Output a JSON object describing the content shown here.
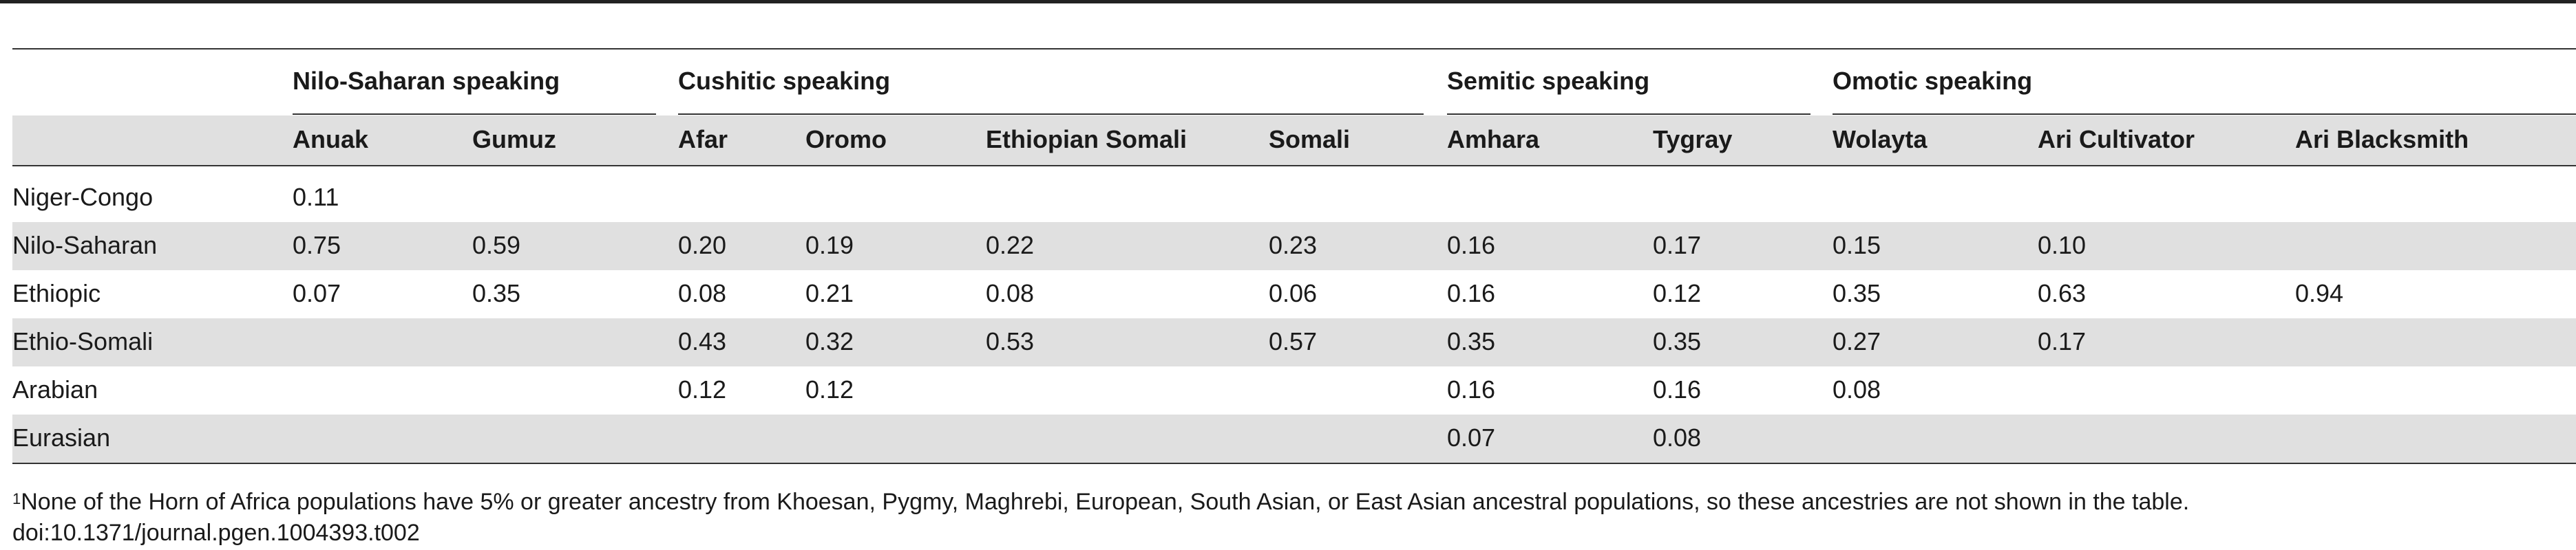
{
  "group_headers": [
    "Nilo-Saharan speaking",
    "Cushitic speaking",
    "Semitic speaking",
    "Omotic speaking"
  ],
  "column_headers": [
    "Anuak",
    "Gumuz",
    "Afar",
    "Oromo",
    "Ethiopian Somali",
    "Somali",
    "Amhara",
    "Tygray",
    "Wolayta",
    "Ari Cultivator",
    "Ari Blacksmith"
  ],
  "rows": [
    {
      "label": "Niger-Congo",
      "cells": [
        "0.11",
        "",
        "",
        "",
        "",
        "",
        "",
        "",
        "",
        "",
        ""
      ]
    },
    {
      "label": "Nilo-Saharan",
      "cells": [
        "0.75",
        "0.59",
        "0.20",
        "0.19",
        "0.22",
        "0.23",
        "0.16",
        "0.17",
        "0.15",
        "0.10",
        ""
      ]
    },
    {
      "label": "Ethiopic",
      "cells": [
        "0.07",
        "0.35",
        "0.08",
        "0.21",
        "0.08",
        "0.06",
        "0.16",
        "0.12",
        "0.35",
        "0.63",
        "0.94"
      ]
    },
    {
      "label": "Ethio-Somali",
      "cells": [
        "",
        "",
        "0.43",
        "0.32",
        "0.53",
        "0.57",
        "0.35",
        "0.35",
        "0.27",
        "0.17",
        ""
      ]
    },
    {
      "label": "Arabian",
      "cells": [
        "",
        "",
        "0.12",
        "0.12",
        "",
        "",
        "0.16",
        "0.16",
        "0.08",
        "",
        ""
      ]
    },
    {
      "label": "Eurasian",
      "cells": [
        "",
        "",
        "",
        "",
        "",
        "",
        "0.07",
        "0.08",
        "",
        "",
        ""
      ]
    }
  ],
  "footnote": {
    "marker": "1",
    "text": "None of the Horn of Africa populations have 5% or greater ancestry from Khoesan, Pygmy, Maghrebi, European, South Asian, or East Asian ancestral populations, so these ancestries are not shown in the table."
  },
  "doi": "doi:10.1371/journal.pgen.1004393.t002"
}
